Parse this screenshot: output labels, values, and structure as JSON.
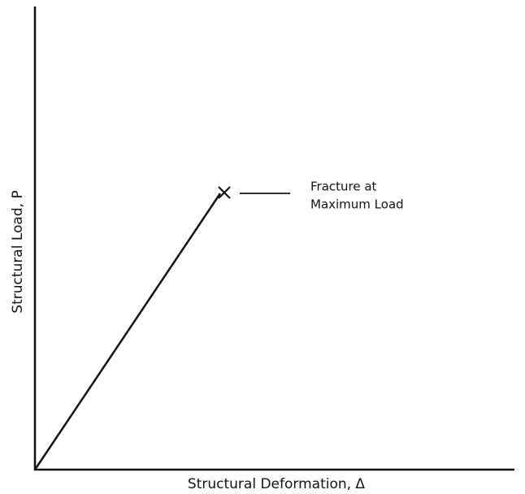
{
  "axes": {
    "x_label": "Structural Deformation, Δ",
    "y_label": "Structural Load, P"
  },
  "annotation": {
    "lines": [
      "Fracture at",
      "Maximum Load"
    ]
  }
}
